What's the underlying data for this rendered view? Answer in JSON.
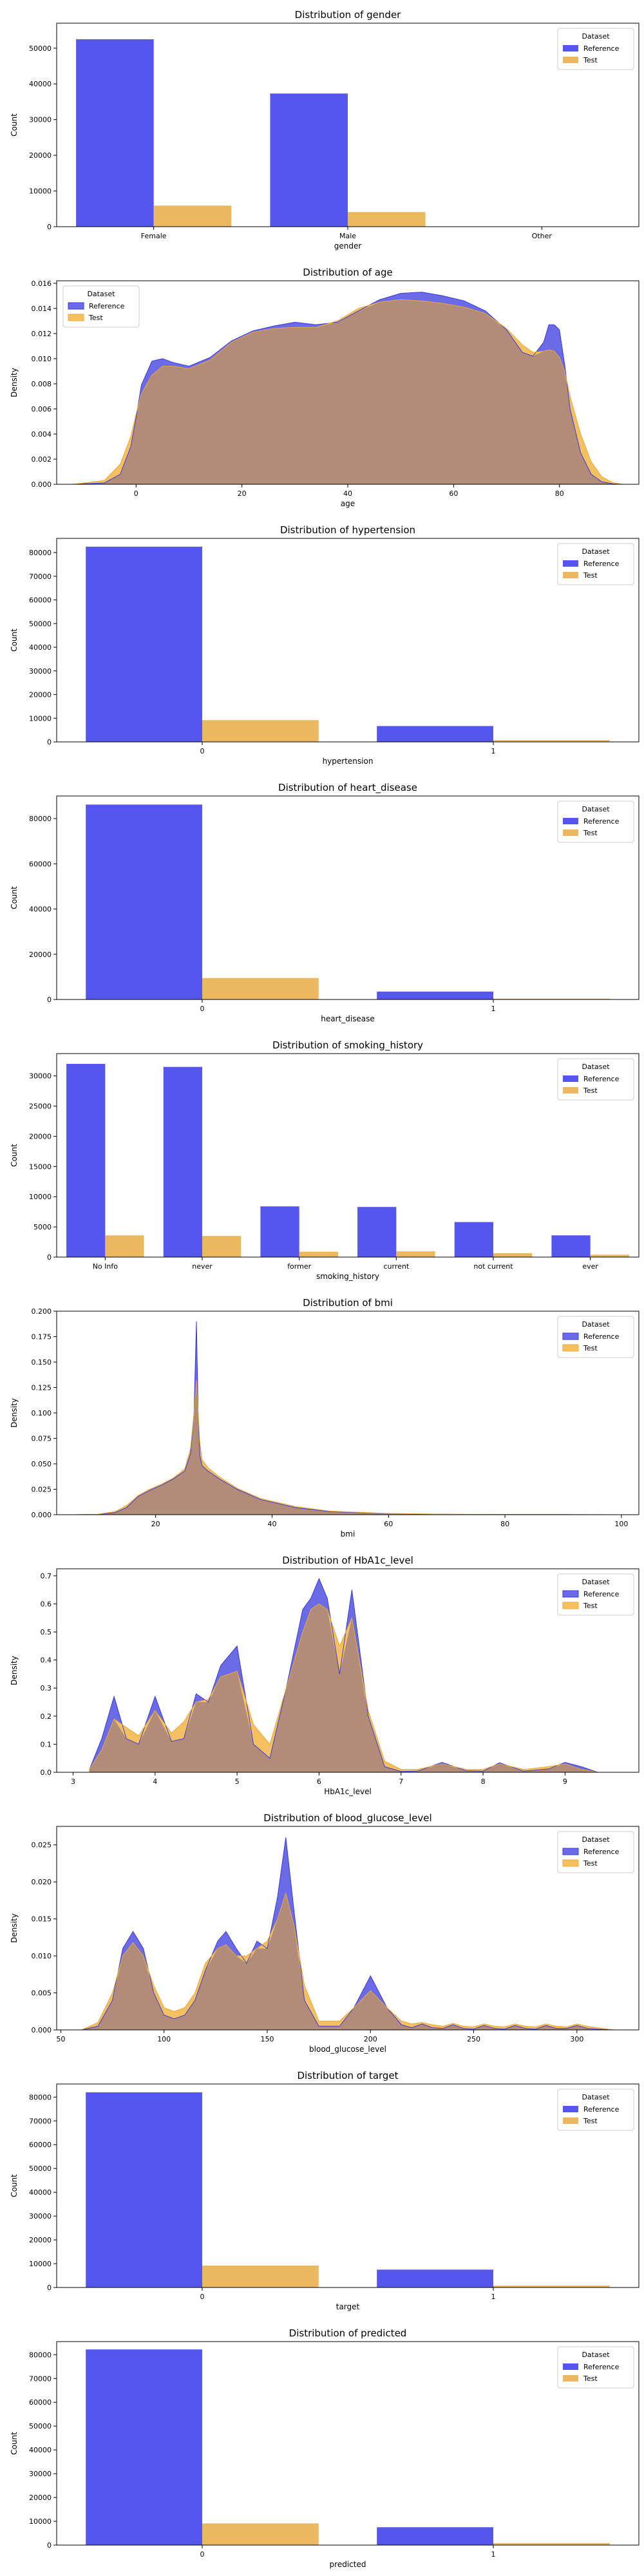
{
  "legend_title": "Dataset",
  "legend_labels": [
    "Reference",
    "Test"
  ],
  "colors": {
    "reference": "#5555f0",
    "test": "#ebb85f",
    "reference_kde": "#6b6be8",
    "test_kde": "#f5c060",
    "overlap": "#b38b79"
  },
  "chart_data": [
    {
      "type": "bar",
      "title": "Distribution of gender",
      "xlabel": "gender",
      "ylabel": "Count",
      "categories": [
        "Female",
        "Male",
        "Other"
      ],
      "series": [
        {
          "name": "Reference",
          "values": [
            52500,
            37300,
            20
          ]
        },
        {
          "name": "Test",
          "values": [
            5900,
            4100,
            3
          ]
        }
      ],
      "ylim": [
        0,
        57000
      ],
      "yticks": [
        0,
        10000,
        20000,
        30000,
        40000,
        50000
      ],
      "legend": "top-right"
    },
    {
      "type": "area",
      "title": "Distribution of age",
      "xlabel": "age",
      "ylabel": "Density",
      "x": [
        -12,
        -6,
        -3,
        -1,
        0,
        1,
        3,
        5,
        7,
        10,
        14,
        18,
        22,
        26,
        30,
        34,
        38,
        42,
        46,
        50,
        54,
        58,
        62,
        66,
        70,
        73,
        75,
        77,
        78,
        79,
        80,
        81,
        82,
        84,
        86,
        88,
        90,
        92
      ],
      "series": [
        {
          "name": "Reference",
          "values": [
            0,
            0.0001,
            0.0008,
            0.003,
            0.0053,
            0.0079,
            0.0098,
            0.01,
            0.0097,
            0.0094,
            0.0101,
            0.0114,
            0.0122,
            0.0126,
            0.0129,
            0.0127,
            0.0129,
            0.0138,
            0.0147,
            0.0152,
            0.0153,
            0.015,
            0.0146,
            0.0138,
            0.0123,
            0.0105,
            0.0102,
            0.0113,
            0.0127,
            0.0127,
            0.0123,
            0.0095,
            0.006,
            0.0025,
            0.0008,
            0.0002,
            4e-05,
            0
          ]
        },
        {
          "name": "Test",
          "values": [
            0,
            0.0003,
            0.0016,
            0.0038,
            0.0056,
            0.0072,
            0.0087,
            0.0094,
            0.0094,
            0.0092,
            0.0099,
            0.0113,
            0.0121,
            0.0124,
            0.0125,
            0.0125,
            0.013,
            0.014,
            0.0145,
            0.0147,
            0.0146,
            0.0144,
            0.0141,
            0.0136,
            0.0124,
            0.0111,
            0.0105,
            0.0106,
            0.0107,
            0.0106,
            0.0101,
            0.009,
            0.007,
            0.004,
            0.0018,
            0.0006,
            0.00015,
            0
          ]
        }
      ],
      "xlim": [
        -15,
        95
      ],
      "xticks": [
        0,
        20,
        40,
        60,
        80
      ],
      "ylim": [
        0,
        0.0162
      ],
      "yticks": [
        0,
        0.002,
        0.004,
        0.006,
        0.008,
        0.01,
        0.012,
        0.014,
        0.016
      ],
      "ytick_labels": [
        "0.000",
        "0.002",
        "0.004",
        "0.006",
        "0.008",
        "0.010",
        "0.012",
        "0.014",
        "0.016"
      ],
      "legend": "top-left"
    },
    {
      "type": "bar",
      "title": "Distribution of hypertension",
      "xlabel": "hypertension",
      "ylabel": "Count",
      "categories": [
        "0",
        "1"
      ],
      "series": [
        {
          "name": "Reference",
          "values": [
            82500,
            6700
          ]
        },
        {
          "name": "Test",
          "values": [
            9200,
            750
          ]
        }
      ],
      "ylim": [
        0,
        86000
      ],
      "yticks": [
        0,
        10000,
        20000,
        30000,
        40000,
        50000,
        60000,
        70000,
        80000
      ],
      "legend": "top-right"
    },
    {
      "type": "bar",
      "title": "Distribution of heart_disease",
      "xlabel": "heart_disease",
      "ylabel": "Count",
      "categories": [
        "0",
        "1"
      ],
      "series": [
        {
          "name": "Reference",
          "values": [
            86200,
            3500
          ]
        },
        {
          "name": "Test",
          "values": [
            9500,
            380
          ]
        }
      ],
      "ylim": [
        0,
        90000
      ],
      "yticks": [
        0,
        20000,
        40000,
        60000,
        80000
      ],
      "legend": "top-right"
    },
    {
      "type": "bar",
      "title": "Distribution of smoking_history",
      "xlabel": "smoking_history",
      "ylabel": "Count",
      "categories": [
        "No Info",
        "never",
        "former",
        "current",
        "not current",
        "ever"
      ],
      "series": [
        {
          "name": "Reference",
          "values": [
            32000,
            31500,
            8400,
            8300,
            5800,
            3600
          ]
        },
        {
          "name": "Test",
          "values": [
            3600,
            3500,
            900,
            950,
            650,
            400
          ]
        }
      ],
      "ylim": [
        0,
        33700
      ],
      "yticks": [
        0,
        5000,
        10000,
        15000,
        20000,
        25000,
        30000
      ],
      "legend": "top-right"
    },
    {
      "type": "area",
      "title": "Distribution of bmi",
      "xlabel": "bmi",
      "ylabel": "Density",
      "x": [
        6,
        10,
        13,
        15,
        17,
        19,
        21,
        23,
        25,
        26,
        26.6,
        27,
        27.3,
        27.6,
        28,
        29,
        31,
        34,
        38,
        44,
        50,
        60,
        70,
        80,
        90,
        100
      ],
      "series": [
        {
          "name": "Reference",
          "values": [
            0,
            0.0003,
            0.002,
            0.007,
            0.018,
            0.024,
            0.029,
            0.035,
            0.043,
            0.06,
            0.1,
            0.19,
            0.1,
            0.058,
            0.048,
            0.043,
            0.035,
            0.025,
            0.015,
            0.007,
            0.003,
            0.001,
            0.0004,
            0.0002,
            0.0001,
            0
          ]
        },
        {
          "name": "Test",
          "values": [
            0,
            0.0004,
            0.003,
            0.009,
            0.019,
            0.025,
            0.03,
            0.036,
            0.045,
            0.065,
            0.1,
            0.132,
            0.1,
            0.07,
            0.054,
            0.046,
            0.037,
            0.026,
            0.016,
            0.008,
            0.0035,
            0.0012,
            0.0005,
            0.0002,
            0.0001,
            0
          ]
        }
      ],
      "xlim": [
        3,
        103
      ],
      "xticks": [
        20,
        40,
        60,
        80,
        100
      ],
      "ylim": [
        0,
        0.2
      ],
      "yticks": [
        0,
        0.025,
        0.05,
        0.075,
        0.1,
        0.125,
        0.15,
        0.175,
        0.2
      ],
      "ytick_labels": [
        "0.000",
        "0.025",
        "0.050",
        "0.075",
        "0.100",
        "0.125",
        "0.150",
        "0.175",
        "0.200"
      ],
      "legend": "top-right"
    },
    {
      "type": "area",
      "title": "Distribution of HbA1c_level",
      "xlabel": "HbA1c_level",
      "ylabel": "Density",
      "x": [
        3.2,
        3.35,
        3.5,
        3.65,
        3.8,
        4.0,
        4.2,
        4.35,
        4.5,
        4.65,
        4.8,
        5.0,
        5.2,
        5.4,
        5.6,
        5.8,
        5.9,
        6.0,
        6.1,
        6.25,
        6.4,
        6.6,
        6.8,
        7.0,
        7.2,
        7.5,
        7.8,
        8.0,
        8.2,
        8.5,
        8.8,
        9.0,
        9.2,
        9.4
      ],
      "series": [
        {
          "name": "Reference",
          "values": [
            0.01,
            0.12,
            0.27,
            0.12,
            0.1,
            0.27,
            0.11,
            0.12,
            0.28,
            0.25,
            0.38,
            0.45,
            0.1,
            0.05,
            0.3,
            0.58,
            0.62,
            0.69,
            0.62,
            0.35,
            0.65,
            0.2,
            0.02,
            0.003,
            0.004,
            0.035,
            0.005,
            0.004,
            0.034,
            0.004,
            0.012,
            0.035,
            0.02,
            0
          ]
        },
        {
          "name": "Test",
          "values": [
            0.01,
            0.08,
            0.19,
            0.16,
            0.13,
            0.22,
            0.14,
            0.18,
            0.25,
            0.26,
            0.34,
            0.36,
            0.17,
            0.1,
            0.3,
            0.5,
            0.58,
            0.6,
            0.58,
            0.45,
            0.55,
            0.22,
            0.04,
            0.01,
            0.01,
            0.03,
            0.01,
            0.01,
            0.03,
            0.01,
            0.02,
            0.03,
            0.01,
            0
          ]
        }
      ],
      "xlim": [
        2.8,
        9.9
      ],
      "xticks": [
        3,
        4,
        5,
        6,
        7,
        8,
        9
      ],
      "ylim": [
        0,
        0.725
      ],
      "yticks": [
        0,
        0.1,
        0.2,
        0.3,
        0.4,
        0.5,
        0.6,
        0.7
      ],
      "ytick_labels": [
        "0.0",
        "0.1",
        "0.2",
        "0.3",
        "0.4",
        "0.5",
        "0.6",
        "0.7"
      ],
      "legend": "top-right"
    },
    {
      "type": "area",
      "title": "Distribution of blood_glucose_level",
      "xlabel": "blood_glucose_level",
      "ylabel": "Density",
      "x": [
        60,
        68,
        75,
        80,
        85,
        90,
        95,
        100,
        105,
        110,
        115,
        120,
        126,
        130,
        135,
        140,
        145,
        150,
        155,
        159,
        163,
        168,
        175,
        185,
        192,
        200,
        208,
        215,
        220,
        225,
        230,
        235,
        240,
        245,
        250,
        255,
        260,
        265,
        270,
        275,
        280,
        285,
        290,
        295,
        300,
        305,
        310,
        318
      ],
      "series": [
        {
          "name": "Reference",
          "values": [
            0,
            0.0005,
            0.004,
            0.011,
            0.0133,
            0.011,
            0.005,
            0.002,
            0.0015,
            0.002,
            0.004,
            0.008,
            0.012,
            0.0133,
            0.011,
            0.009,
            0.012,
            0.011,
            0.018,
            0.026,
            0.016,
            0.004,
            0.0005,
            0.0005,
            0.003,
            0.0073,
            0.003,
            0.0007,
            0.0003,
            0.0008,
            0.0003,
            0.0002,
            0.0007,
            0.0002,
            0.0001,
            0.0006,
            0.0002,
            0.0001,
            0.0006,
            0.0002,
            0.0001,
            0.0006,
            0.0002,
            0.0002,
            0.0006,
            0.0002,
            0.0001,
            0
          ]
        },
        {
          "name": "Test",
          "values": [
            0,
            0.001,
            0.005,
            0.01,
            0.0118,
            0.01,
            0.006,
            0.003,
            0.0025,
            0.003,
            0.005,
            0.009,
            0.011,
            0.0115,
            0.01,
            0.01,
            0.011,
            0.012,
            0.015,
            0.0185,
            0.014,
            0.006,
            0.0012,
            0.0012,
            0.003,
            0.0053,
            0.003,
            0.0012,
            0.0008,
            0.001,
            0.0007,
            0.0005,
            0.0009,
            0.0005,
            0.0004,
            0.0008,
            0.0005,
            0.0004,
            0.0008,
            0.0005,
            0.0004,
            0.0008,
            0.0005,
            0.0004,
            0.0008,
            0.0005,
            0.0003,
            0
          ]
        }
      ],
      "xlim": [
        48,
        330
      ],
      "xticks": [
        50,
        100,
        150,
        200,
        250,
        300
      ],
      "ylim": [
        0,
        0.0275
      ],
      "yticks": [
        0,
        0.005,
        0.01,
        0.015,
        0.02,
        0.025
      ],
      "ytick_labels": [
        "0.000",
        "0.005",
        "0.010",
        "0.015",
        "0.020",
        "0.025"
      ],
      "legend": "top-right"
    },
    {
      "type": "bar",
      "title": "Distribution of target",
      "xlabel": "target",
      "ylabel": "Count",
      "categories": [
        "0",
        "1"
      ],
      "series": [
        {
          "name": "Reference",
          "values": [
            82000,
            7500
          ]
        },
        {
          "name": "Test",
          "values": [
            9200,
            800
          ]
        }
      ],
      "ylim": [
        0,
        85500
      ],
      "yticks": [
        0,
        10000,
        20000,
        30000,
        40000,
        50000,
        60000,
        70000,
        80000
      ],
      "legend": "top-right"
    },
    {
      "type": "bar",
      "title": "Distribution of predicted",
      "xlabel": "predicted",
      "ylabel": "Count",
      "categories": [
        "0",
        "1"
      ],
      "series": [
        {
          "name": "Reference",
          "values": [
            82200,
            7500
          ]
        },
        {
          "name": "Test",
          "values": [
            9100,
            850
          ]
        }
      ],
      "ylim": [
        0,
        85500
      ],
      "yticks": [
        0,
        10000,
        20000,
        30000,
        40000,
        50000,
        60000,
        70000,
        80000
      ],
      "legend": "top-right"
    }
  ]
}
